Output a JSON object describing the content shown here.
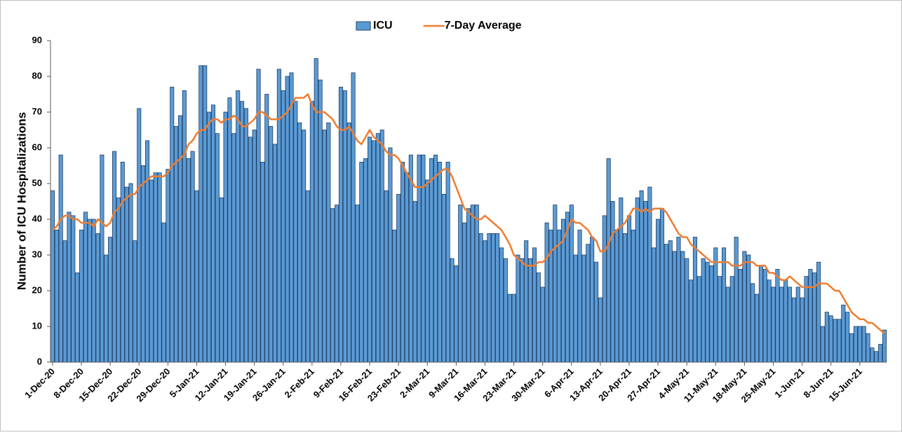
{
  "chart_data": {
    "type": "bar",
    "y_label": "Number of ICU Hospitalizations",
    "categories": [
      "1-Dec-20",
      null,
      null,
      null,
      null,
      null,
      null,
      "8-Dec-20",
      null,
      null,
      null,
      null,
      null,
      null,
      "15-Dec-20",
      null,
      null,
      null,
      null,
      null,
      null,
      "22-Dec-20",
      null,
      null,
      null,
      null,
      null,
      null,
      "29-Dec-20",
      null,
      null,
      null,
      null,
      null,
      null,
      "5-Jan-21",
      null,
      null,
      null,
      null,
      null,
      null,
      "12-Jan-21",
      null,
      null,
      null,
      null,
      null,
      null,
      "19-Jan-21",
      null,
      null,
      null,
      null,
      null,
      null,
      "26-Jan-21",
      null,
      null,
      null,
      null,
      null,
      null,
      "2-Feb-21",
      null,
      null,
      null,
      null,
      null,
      null,
      "9-Feb-21",
      null,
      null,
      null,
      null,
      null,
      null,
      "16-Feb-21",
      null,
      null,
      null,
      null,
      null,
      null,
      "23-Feb-21",
      null,
      null,
      null,
      null,
      null,
      null,
      "2-Mar-21",
      null,
      null,
      null,
      null,
      null,
      null,
      "9-Mar-21",
      null,
      null,
      null,
      null,
      null,
      null,
      "16-Mar-21",
      null,
      null,
      null,
      null,
      null,
      null,
      "23-Mar-21",
      null,
      null,
      null,
      null,
      null,
      null,
      "30-Mar-21",
      null,
      null,
      null,
      null,
      null,
      null,
      "6-Apr-21",
      null,
      null,
      null,
      null,
      null,
      null,
      "13-Apr-21",
      null,
      null,
      null,
      null,
      null,
      null,
      "20-Apr-21",
      null,
      null,
      null,
      null,
      null,
      null,
      "27-Apr-21",
      null,
      null,
      null,
      null,
      null,
      null,
      "4-May-21",
      null,
      null,
      null,
      null,
      null,
      null,
      "11-May-21",
      null,
      null,
      null,
      null,
      null,
      null,
      "18-May-21",
      null,
      null,
      null,
      null,
      null,
      null,
      "25-May-21",
      null,
      null,
      null,
      null,
      null,
      null,
      "1-Jun-21",
      null,
      null,
      null,
      null,
      null,
      null,
      "8-Jun-21",
      null,
      null,
      null,
      null,
      null,
      null,
      "15-Jun-21",
      null,
      null,
      null,
      null,
      null,
      null
    ],
    "series": [
      {
        "name": "ICU",
        "type": "bar",
        "color": "#5b9bd5",
        "values": [
          48,
          37,
          58,
          34,
          42,
          41,
          25,
          37,
          42,
          40,
          40,
          36,
          58,
          30,
          35,
          59,
          46,
          56,
          49,
          50,
          34,
          71,
          55,
          62,
          51,
          53,
          53,
          39,
          54,
          77,
          66,
          69,
          76,
          57,
          59,
          48,
          83,
          83,
          70,
          72,
          64,
          46,
          70,
          74,
          64,
          76,
          73,
          71,
          63,
          65,
          82,
          56,
          75,
          66,
          61,
          82,
          76,
          80,
          81,
          73,
          67,
          65,
          48,
          73,
          85,
          79,
          65,
          67,
          43,
          44,
          77,
          76,
          67,
          81,
          44,
          56,
          57,
          63,
          62,
          64,
          65,
          48,
          60,
          37,
          47,
          56,
          53,
          58,
          45,
          58,
          58,
          51,
          57,
          58,
          56,
          47,
          56,
          29,
          27,
          44,
          39,
          43,
          44,
          44,
          36,
          34,
          36,
          36,
          36,
          32,
          29,
          19,
          19,
          30,
          29,
          34,
          29,
          32,
          25,
          21,
          39,
          37,
          44,
          37,
          40,
          42,
          44,
          30,
          37,
          30,
          33,
          35,
          28,
          18,
          41,
          57,
          45,
          37,
          46,
          36,
          41,
          37,
          46,
          48,
          45,
          49,
          32,
          40,
          43,
          33,
          34,
          31,
          35,
          31,
          29,
          23,
          35,
          24,
          29,
          28,
          27,
          32,
          24,
          32,
          21,
          24,
          35,
          26,
          31,
          30,
          22,
          19,
          27,
          26,
          23,
          21,
          26,
          21,
          23,
          21,
          18,
          21,
          18,
          24,
          26,
          25,
          28,
          10,
          14,
          13,
          12,
          12,
          16,
          14,
          8,
          10,
          10,
          10,
          8,
          4,
          3,
          5,
          9
        ]
      },
      {
        "name": "7-Day Average",
        "type": "line",
        "color": "#ed7d31",
        "values": [
          37,
          38,
          40,
          41,
          41,
          40,
          40,
          39,
          39,
          39,
          38,
          40,
          39,
          38,
          39,
          42,
          43,
          45,
          46,
          47,
          47,
          49,
          50,
          51,
          52,
          52,
          52,
          52,
          53,
          55,
          56,
          57,
          58,
          61,
          62,
          64,
          65,
          65,
          67,
          68,
          68,
          67,
          68,
          68,
          69,
          68,
          66,
          66,
          67,
          68,
          70,
          70,
          69,
          68,
          68,
          68,
          69,
          70,
          72,
          74,
          74,
          74,
          75,
          72,
          70,
          70,
          70,
          69,
          68,
          66,
          65,
          65,
          66,
          64,
          62,
          61,
          63,
          65,
          63,
          62,
          61,
          59,
          58,
          58,
          57,
          55,
          53,
          51,
          49,
          49,
          49,
          50,
          51,
          52,
          53,
          54,
          54,
          52,
          49,
          46,
          43,
          42,
          41,
          40,
          40,
          41,
          40,
          39,
          38,
          37,
          35,
          33,
          30,
          29,
          28,
          27,
          27,
          27,
          28,
          28,
          29,
          31,
          32,
          33,
          34,
          37,
          40,
          39,
          39,
          38,
          37,
          35,
          34,
          31,
          31,
          33,
          36,
          37,
          38,
          39,
          41,
          43,
          43,
          42,
          43,
          42,
          43,
          43,
          43,
          42,
          40,
          38,
          36,
          35,
          35,
          33,
          32,
          31,
          30,
          29,
          28,
          28,
          28,
          28,
          28,
          27,
          27,
          27,
          28,
          28,
          28,
          27,
          27,
          27,
          25,
          25,
          24,
          23,
          23,
          24,
          23,
          22,
          21,
          21,
          21,
          21,
          22,
          22,
          22,
          21,
          20,
          20,
          18,
          16,
          14,
          13,
          12,
          12,
          11,
          11,
          10,
          9,
          8
        ]
      }
    ],
    "ylim": [
      0,
      90
    ],
    "yticks": [
      0,
      10,
      20,
      30,
      40,
      50,
      60,
      70,
      80,
      90
    ],
    "grid": false,
    "legend": "top"
  }
}
